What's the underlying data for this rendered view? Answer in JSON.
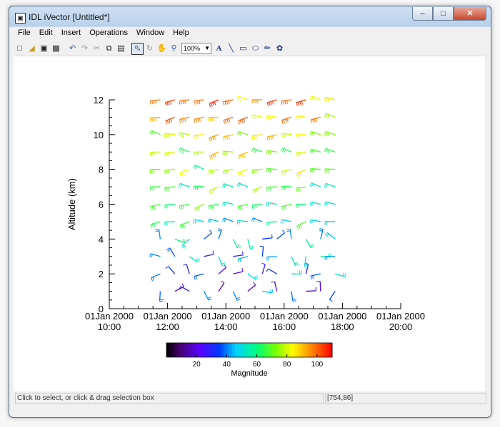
{
  "window": {
    "title": "IDL iVector [Untitled*]",
    "min": "–",
    "max": "□",
    "close": "✕",
    "app_icon": "▣"
  },
  "menu": [
    "File",
    "Edit",
    "Insert",
    "Operations",
    "Window",
    "Help"
  ],
  "toolbar": {
    "zoom_value": "100%",
    "icons": [
      "new-file-icon",
      "open-folder-icon",
      "save-icon",
      "print-icon",
      "undo-icon",
      "redo-icon",
      "cut-icon",
      "copy-icon",
      "paste-icon",
      "select-arrow-icon",
      "rotate-icon",
      "pan-hand-icon",
      "zoom-icon",
      "text-icon",
      "line-icon",
      "rectangle-icon",
      "ellipse-icon",
      "freehand-icon",
      "lasso-icon"
    ]
  },
  "status": {
    "left": "Click to select, or click & drag selection box",
    "right": "[754,86]"
  },
  "chart_data": {
    "type": "vector-field",
    "ylabel": "Altitude (km)",
    "y_ticks": [
      "0",
      "2",
      "4",
      "6",
      "8",
      "10",
      "12"
    ],
    "ylim": [
      0,
      12
    ],
    "x_ticks": [
      {
        "date": "01Jan 2000",
        "time": "10:00"
      },
      {
        "date": "01Jan 2000",
        "time": "12:00"
      },
      {
        "date": "01Jan 2000",
        "time": "14:00"
      },
      {
        "date": "01Jan 2000",
        "time": "16:00"
      },
      {
        "date": "01Jan 2000",
        "time": "18:00"
      },
      {
        "date": "01Jan 2000",
        "time": "20:00"
      }
    ],
    "xlim": [
      "01Jan 2000 10:00",
      "01Jan 2000 20:00"
    ],
    "x_values": [
      "11:45",
      "12:15",
      "12:45",
      "13:15",
      "13:45",
      "14:15",
      "14:45",
      "15:15",
      "15:45",
      "16:15",
      "16:45",
      "17:15",
      "17:45"
    ],
    "altitudes": [
      1,
      2,
      3,
      4,
      5,
      6,
      7,
      8,
      9,
      10,
      11,
      12
    ],
    "colorbar": {
      "label": "Magnitude",
      "ticks": [
        "20",
        "40",
        "60",
        "80",
        "100"
      ],
      "range": [
        0,
        110
      ]
    },
    "grid": false
  }
}
